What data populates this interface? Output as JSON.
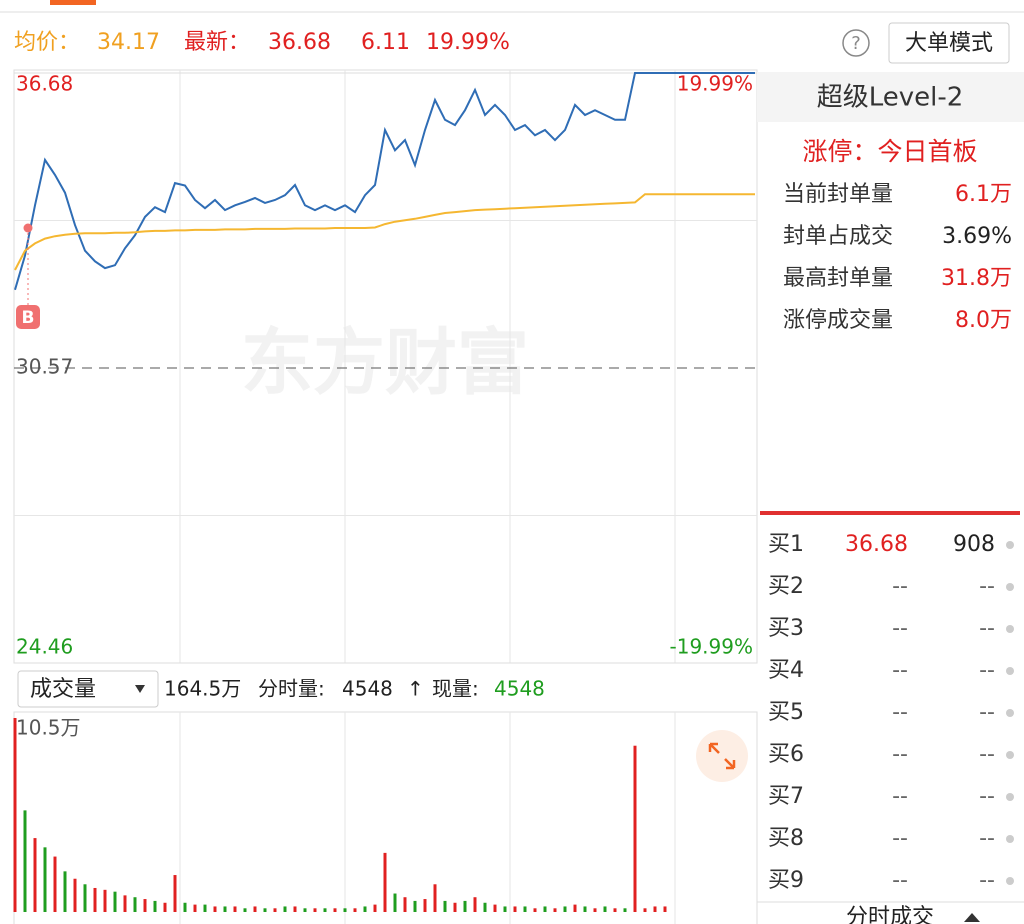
{
  "header": {
    "avg_label": "均价：",
    "avg": "34.17",
    "latest_label": "最新：",
    "latest": "36.68",
    "change": "6.11",
    "change_pct": "19.99%",
    "help": "?",
    "mode_button": "大单模式"
  },
  "chart_data": [
    {
      "type": "line",
      "watermark": "东方财富",
      "marker_label": "B",
      "ylim": [
        24.46,
        36.68
      ],
      "yticks": [
        24.46,
        30.57,
        36.68
      ],
      "y2lim": [
        -19.99,
        19.99
      ],
      "y2ticks": [
        {
          "value": -19.99,
          "label": "-19.99%"
        },
        {
          "value": 19.99,
          "label": "19.99%"
        }
      ],
      "grid": true,
      "series": [
        {
          "color": "#2f6db5",
          "values": [
            32.19,
            32.9,
            33.94,
            34.88,
            34.57,
            34.2,
            33.53,
            33.0,
            32.78,
            32.64,
            32.7,
            33.05,
            33.32,
            33.7,
            33.9,
            33.8,
            34.4,
            34.35,
            34.05,
            33.88,
            34.05,
            33.84,
            33.94,
            34.01,
            34.09,
            33.99,
            34.05,
            34.15,
            34.36,
            33.94,
            33.84,
            33.94,
            33.84,
            33.94,
            33.8,
            34.15,
            34.36,
            35.5,
            35.08,
            35.29,
            34.77,
            35.5,
            36.12,
            35.71,
            35.6,
            35.91,
            36.33,
            35.81,
            36.02,
            35.81,
            35.5,
            35.6,
            35.39,
            35.5,
            35.29,
            35.5,
            36.02,
            35.81,
            35.91,
            35.81,
            35.71,
            35.71,
            36.68,
            36.68,
            36.68,
            36.68,
            36.68,
            36.68,
            36.68,
            36.68,
            36.68,
            36.68,
            36.68,
            36.68,
            36.68
          ]
        },
        {
          "color": "#f5b731",
          "values": [
            32.6,
            33.0,
            33.15,
            33.25,
            33.3,
            33.33,
            33.35,
            33.36,
            33.36,
            33.36,
            33.37,
            33.37,
            33.38,
            33.4,
            33.41,
            33.41,
            33.42,
            33.42,
            33.43,
            33.43,
            33.43,
            33.44,
            33.44,
            33.44,
            33.45,
            33.45,
            33.45,
            33.45,
            33.46,
            33.46,
            33.46,
            33.46,
            33.47,
            33.47,
            33.47,
            33.47,
            33.48,
            33.55,
            33.6,
            33.63,
            33.66,
            33.7,
            33.74,
            33.78,
            33.8,
            33.82,
            33.84,
            33.85,
            33.86,
            33.87,
            33.88,
            33.89,
            33.9,
            33.91,
            33.92,
            33.93,
            33.94,
            33.95,
            33.96,
            33.97,
            33.98,
            33.99,
            34.0,
            34.17,
            34.17,
            34.17,
            34.17,
            34.17,
            34.17,
            34.17,
            34.17,
            34.17,
            34.17,
            34.17,
            34.17
          ]
        }
      ]
    },
    {
      "type": "bar",
      "ylim": [
        0,
        10.5
      ],
      "yticks": [
        {
          "value": 10.5,
          "label": "10.5万"
        }
      ],
      "values": [
        10.5,
        5.5,
        4.0,
        3.5,
        3.0,
        2.2,
        1.8,
        1.5,
        1.3,
        1.2,
        1.1,
        0.9,
        0.8,
        0.7,
        0.6,
        0.5,
        2.0,
        0.5,
        0.4,
        0.4,
        0.3,
        0.3,
        0.3,
        0.2,
        0.3,
        0.2,
        0.2,
        0.3,
        0.3,
        0.2,
        0.2,
        0.2,
        0.2,
        0.2,
        0.2,
        0.3,
        0.4,
        3.2,
        1.0,
        0.8,
        0.6,
        0.7,
        1.5,
        0.6,
        0.5,
        0.6,
        0.8,
        0.5,
        0.4,
        0.3,
        0.3,
        0.3,
        0.2,
        0.3,
        0.2,
        0.3,
        0.4,
        0.3,
        0.2,
        0.3,
        0.2,
        0.2,
        9.0,
        0.2,
        0.3,
        0.3,
        0,
        0,
        0,
        0,
        0,
        0,
        0,
        0,
        0
      ],
      "colors": [
        "#e02020",
        "#1f9d1f",
        "#e02020",
        "#1f9d1f",
        "#e02020",
        "#1f9d1f",
        "#e02020",
        "#1f9d1f",
        "#e02020",
        "#e02020",
        "#1f9d1f",
        "#e02020",
        "#1f9d1f",
        "#e02020",
        "#1f9d1f",
        "#e02020",
        "#e02020",
        "#1f9d1f",
        "#e02020",
        "#1f9d1f",
        "#e02020",
        "#1f9d1f",
        "#e02020",
        "#1f9d1f",
        "#e02020",
        "#1f9d1f",
        "#e02020",
        "#1f9d1f",
        "#e02020",
        "#1f9d1f",
        "#e02020",
        "#1f9d1f",
        "#e02020",
        "#1f9d1f",
        "#e02020",
        "#1f9d1f",
        "#e02020",
        "#e02020",
        "#1f9d1f",
        "#e02020",
        "#1f9d1f",
        "#e02020",
        "#e02020",
        "#1f9d1f",
        "#e02020",
        "#1f9d1f",
        "#e02020",
        "#1f9d1f",
        "#e02020",
        "#1f9d1f",
        "#e02020",
        "#1f9d1f",
        "#e02020",
        "#1f9d1f",
        "#e02020",
        "#1f9d1f",
        "#e02020",
        "#1f9d1f",
        "#e02020",
        "#1f9d1f",
        "#e02020",
        "#1f9d1f",
        "#e02020",
        "#e02020",
        "#e02020",
        "#e02020",
        "#e02020",
        "#e02020",
        "#e02020",
        "#e02020",
        "#e02020",
        "#e02020",
        "#e02020",
        "#e02020",
        "#e02020"
      ]
    }
  ],
  "volume_header": {
    "selector": "成交量",
    "total": "164.5万",
    "period_label": "分时量:",
    "period": "4548",
    "arrow": "↑",
    "current_label": "现量:",
    "current": "4548"
  },
  "level2": {
    "title": "超级Level-2",
    "status": "涨停：今日首板",
    "stats": [
      [
        "当前封单量",
        "6.1万"
      ],
      [
        "封单占成交",
        "3.69%"
      ],
      [
        "最高封单量",
        "31.8万"
      ],
      [
        "涨停成交量",
        "8.0万"
      ]
    ]
  },
  "order_book": [
    [
      "买1",
      "36.68",
      "908"
    ],
    [
      "买2",
      "--",
      "--"
    ],
    [
      "买3",
      "--",
      "--"
    ],
    [
      "买4",
      "--",
      "--"
    ],
    [
      "买5",
      "--",
      "--"
    ],
    [
      "买6",
      "--",
      "--"
    ],
    [
      "买7",
      "--",
      "--"
    ],
    [
      "买8",
      "--",
      "--"
    ],
    [
      "买9",
      "--",
      "--"
    ]
  ],
  "footer_tab": "分时成交"
}
